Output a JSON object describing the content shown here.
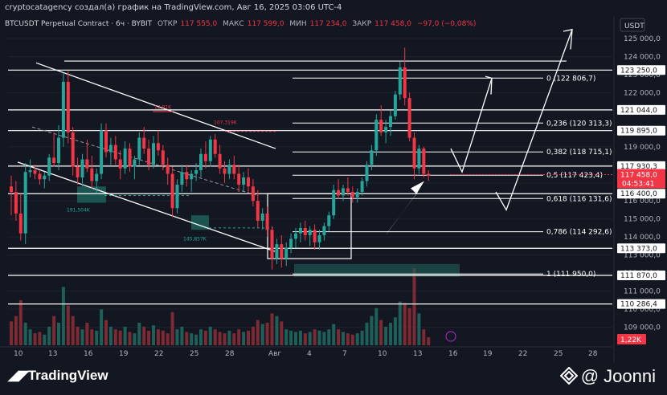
{
  "header": {
    "caption": "cryptocatagency создал(а) график на TradingView.com, Авг 16, 2025 03:06 UTC-4"
  },
  "symbol_bar": {
    "symbol": "BTCUSDT Perpetual Contract · 6ч · BYBIT",
    "open_label": "ОТКР",
    "open": "117 555,0",
    "high_label": "МАКС",
    "high": "117 599,0",
    "low_label": "МИН",
    "low": "117 234,0",
    "close_label": "ЗАКР",
    "close": "117 458,0",
    "change": "−97,0 (−0,08%)"
  },
  "currency": "USDT",
  "footer": {
    "brand": "TradingView",
    "author": "@ Joonni"
  },
  "colors": {
    "background": "#131722",
    "up": "#26a69a",
    "down": "#f23645",
    "text": "#d1d4dc",
    "lines": "#ffffff"
  },
  "chart_data": {
    "type": "candlestick",
    "ylim": [
      108000,
      125800
    ],
    "y_ticks": [
      "125 000,0",
      "124 000,0",
      "123 000,0",
      "122 000,0",
      "121 000,0",
      "120 000,0",
      "119 000,0",
      "118 000,0",
      "117 000,0",
      "116 000,0",
      "115 000,0",
      "114 000,0",
      "113 000,0",
      "112 000,0",
      "111 000,0",
      "110 000,0",
      "109 000,0"
    ],
    "x_ticks": [
      "10",
      "13",
      "16",
      "19",
      "22",
      "25",
      "28",
      "Авг",
      "4",
      "7",
      "10",
      "13",
      "16",
      "19",
      "22",
      "25",
      "28"
    ],
    "candles": [
      [
        116800,
        117400,
        115200,
        116500
      ],
      [
        116500,
        117100,
        114900,
        115300
      ],
      [
        115300,
        116400,
        113800,
        114200
      ],
      [
        114200,
        118100,
        113600,
        117600
      ],
      [
        117600,
        118300,
        117300,
        117700
      ],
      [
        117700,
        118000,
        117200,
        117500
      ],
      [
        117500,
        117700,
        116900,
        117200
      ],
      [
        117200,
        117600,
        116700,
        117400
      ],
      [
        117400,
        118600,
        117100,
        118400
      ],
      [
        118400,
        119800,
        117900,
        118100
      ],
      [
        118100,
        120200,
        117700,
        119500
      ],
      [
        119500,
        123100,
        119000,
        122600
      ],
      [
        122600,
        123200,
        119200,
        119800
      ],
      [
        119800,
        120100,
        117400,
        117900
      ],
      [
        117900,
        118400,
        116900,
        117300
      ],
      [
        117300,
        118600,
        116800,
        118300
      ],
      [
        118300,
        119400,
        117600,
        117800
      ],
      [
        117800,
        118500,
        116700,
        117100
      ],
      [
        117100,
        117800,
        116400,
        117500
      ],
      [
        117500,
        120300,
        117200,
        119900
      ],
      [
        119900,
        120300,
        118400,
        118700
      ],
      [
        118700,
        119500,
        118000,
        119100
      ],
      [
        119100,
        119600,
        118000,
        118300
      ],
      [
        118300,
        118800,
        117200,
        117800
      ],
      [
        117800,
        119300,
        117500,
        118900
      ],
      [
        118900,
        119200,
        117600,
        117900
      ],
      [
        117900,
        118500,
        117200,
        118300
      ],
      [
        118300,
        119800,
        118000,
        119500
      ],
      [
        119500,
        120100,
        118600,
        118900
      ],
      [
        118900,
        119400,
        117700,
        118000
      ],
      [
        118000,
        119600,
        117800,
        119200
      ],
      [
        119200,
        119900,
        118500,
        118800
      ],
      [
        118800,
        119100,
        117700,
        118000
      ],
      [
        118000,
        118400,
        116900,
        117500
      ],
      [
        117500,
        117900,
        115100,
        115600
      ],
      [
        115600,
        117200,
        115300,
        116900
      ],
      [
        116900,
        118000,
        116500,
        117600
      ],
      [
        117600,
        118000,
        116800,
        117200
      ],
      [
        117200,
        117700,
        116500,
        117500
      ],
      [
        117500,
        118100,
        117100,
        117700
      ],
      [
        117700,
        118900,
        117300,
        118600
      ],
      [
        118600,
        119300,
        117800,
        118200
      ],
      [
        118200,
        119600,
        117900,
        119400
      ],
      [
        119400,
        119700,
        118400,
        118600
      ],
      [
        118600,
        119100,
        117500,
        117800
      ],
      [
        117800,
        118200,
        117000,
        117500
      ],
      [
        117500,
        118300,
        117200,
        118000
      ],
      [
        118000,
        118500,
        117200,
        117500
      ],
      [
        117500,
        118000,
        116500,
        116900
      ],
      [
        116900,
        117600,
        116500,
        117300
      ],
      [
        117300,
        117800,
        116400,
        116800
      ],
      [
        116800,
        117200,
        115700,
        116000
      ],
      [
        116000,
        116600,
        114500,
        114900
      ],
      [
        114900,
        115600,
        114400,
        115300
      ],
      [
        115300,
        115700,
        114000,
        114400
      ],
      [
        114400,
        114600,
        112200,
        112800
      ],
      [
        112800,
        113900,
        112500,
        113600
      ],
      [
        113600,
        114100,
        112300,
        112800
      ],
      [
        112800,
        113700,
        112400,
        113400
      ],
      [
        113400,
        114200,
        113100,
        113900
      ],
      [
        113900,
        114500,
        113400,
        114200
      ],
      [
        114200,
        114800,
        113700,
        114500
      ],
      [
        114500,
        114900,
        113800,
        114100
      ],
      [
        114100,
        114600,
        113500,
        114400
      ],
      [
        114400,
        114700,
        113300,
        113700
      ],
      [
        113700,
        114400,
        113300,
        114100
      ],
      [
        114100,
        114800,
        113800,
        114600
      ],
      [
        114600,
        115400,
        114300,
        115200
      ],
      [
        115200,
        116900,
        115000,
        116600
      ],
      [
        116600,
        117200,
        116100,
        116300
      ],
      [
        116300,
        116900,
        116000,
        116700
      ],
      [
        116700,
        117300,
        116300,
        116500
      ],
      [
        116500,
        116800,
        115900,
        116200
      ],
      [
        116200,
        116700,
        115900,
        116500
      ],
      [
        116500,
        117300,
        116300,
        117100
      ],
      [
        117100,
        118200,
        116800,
        118000
      ],
      [
        118000,
        119100,
        117700,
        118800
      ],
      [
        118800,
        120800,
        118500,
        120500
      ],
      [
        120500,
        121300,
        119600,
        119800
      ],
      [
        119800,
        120500,
        119200,
        120100
      ],
      [
        120100,
        121000,
        119600,
        120700
      ],
      [
        120700,
        122100,
        120500,
        121900
      ],
      [
        121900,
        123700,
        121600,
        123400
      ],
      [
        123400,
        124500,
        121300,
        121700
      ],
      [
        121700,
        122000,
        119300,
        119500
      ],
      [
        119500,
        119800,
        117200,
        117800
      ],
      [
        117800,
        119100,
        117500,
        118900
      ],
      [
        118900,
        119000,
        117300,
        117500
      ],
      [
        117500,
        117700,
        117100,
        117400
      ]
    ],
    "volumes": [
      18,
      22,
      34,
      17,
      12,
      9,
      10,
      8,
      14,
      22,
      17,
      44,
      30,
      22,
      14,
      12,
      17,
      12,
      11,
      27,
      19,
      14,
      12,
      11,
      14,
      10,
      9,
      17,
      14,
      11,
      15,
      12,
      11,
      9,
      25,
      12,
      14,
      10,
      9,
      8,
      12,
      11,
      14,
      12,
      10,
      9,
      11,
      9,
      12,
      10,
      11,
      14,
      19,
      16,
      17,
      24,
      22,
      18,
      12,
      11,
      10,
      11,
      9,
      10,
      12,
      11,
      10,
      12,
      16,
      12,
      10,
      9,
      8,
      9,
      11,
      17,
      22,
      28,
      19,
      14,
      17,
      21,
      33,
      32,
      28,
      58,
      24,
      12,
      6
    ],
    "horizontal_levels": [
      {
        "price": 123250,
        "label": "123 250,0"
      },
      {
        "price": 121044,
        "label": "121 044,0"
      },
      {
        "price": 119895,
        "label": "119 895,0"
      },
      {
        "price": 117930.3,
        "label": "117 930,3"
      },
      {
        "price": 116400,
        "label": "116 400,0"
      },
      {
        "price": 113373,
        "label": "113 373,0"
      },
      {
        "price": 111870,
        "label": "111 870,0"
      },
      {
        "price": 110286.4,
        "label": "110 286,4"
      }
    ],
    "fib_levels": [
      {
        "ratio": "0",
        "price": 122806.7,
        "label": "0 (122 806,7)"
      },
      {
        "ratio": "0,236",
        "price": 120313.3,
        "label": "0,236 (120 313,3)"
      },
      {
        "ratio": "0,382",
        "price": 118715.1,
        "label": "0,382 (118 715,1)"
      },
      {
        "ratio": "0,5",
        "price": 117423.4,
        "label": "0,5 (117 423,4)"
      },
      {
        "ratio": "0,618",
        "price": 116131.6,
        "label": "0,618 (116 131,6)"
      },
      {
        "ratio": "0,786",
        "price": 114292.6,
        "label": "0,786 (114 292,6)"
      },
      {
        "ratio": "1",
        "price": 111950,
        "label": "1 (111 950,0)"
      }
    ],
    "current_price": {
      "price": 117458,
      "label": "117 458,0",
      "countdown": "04:53:41"
    },
    "volume_label": "1,22K",
    "annotations": [
      "191,504K",
      "145,857K",
      "12,81K",
      "107,319K"
    ]
  }
}
